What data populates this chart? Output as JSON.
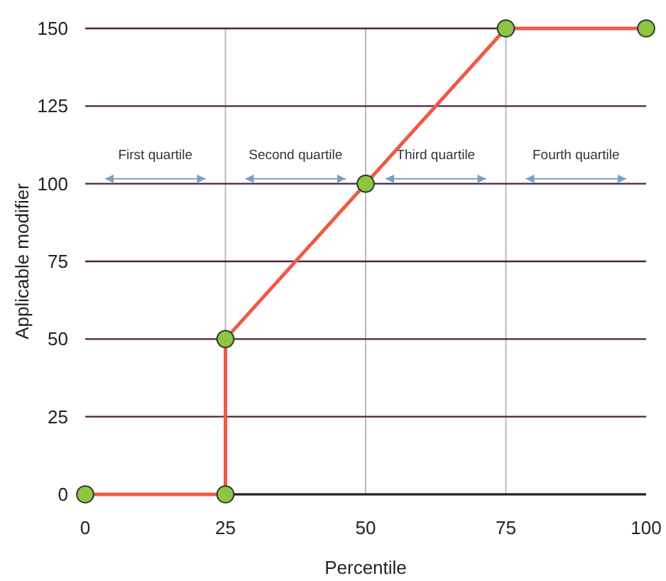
{
  "chart_data": {
    "type": "line",
    "xlabel": "Percentile",
    "ylabel": "Applicable modifier",
    "x": [
      0,
      25,
      25,
      50,
      75,
      100
    ],
    "series": [
      {
        "color": "#ee5a48",
        "values": [
          0,
          0,
          50,
          100,
          150,
          150
        ]
      }
    ],
    "xlim": [
      0,
      100
    ],
    "xticks": [
      0,
      25,
      50,
      75,
      100
    ],
    "ylim": [
      0,
      150
    ],
    "yticks": [
      0,
      25,
      50,
      75,
      100,
      125,
      150
    ],
    "grid": true,
    "marker": "circle",
    "annotations": [
      "First quartile",
      "Second quartile",
      "Third quartile",
      "Fourth quartile"
    ]
  }
}
